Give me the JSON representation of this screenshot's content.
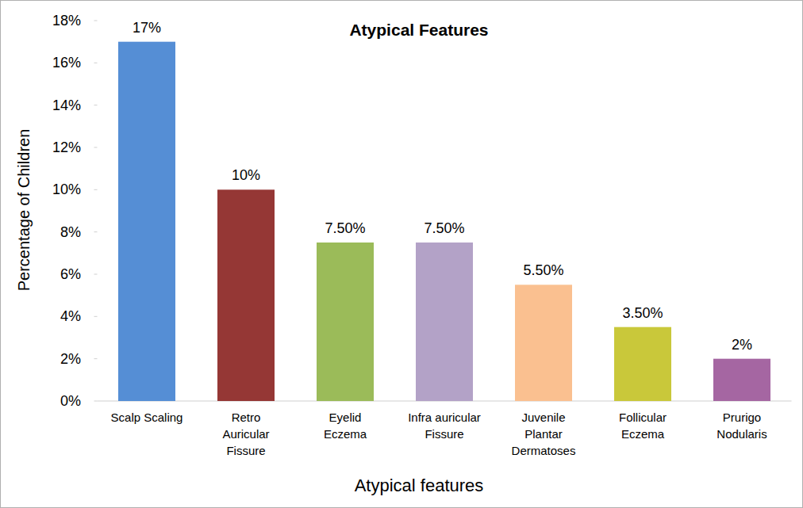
{
  "chart_data": {
    "type": "bar",
    "title": "Atypical Features",
    "x_label": "Atypical features",
    "y_label": "Percentage of Children",
    "categories": [
      "Scalp Scaling",
      "Retro\nAuricular\nFissure",
      "Eyelid\nEczema",
      "Infra auricular\nFissure",
      "Juvenile\nPlantar\nDermatoses",
      "Follicular\nEczema",
      "Prurigo\nNodularis"
    ],
    "values": [
      17,
      10,
      7.5,
      7.5,
      5.5,
      3.5,
      2
    ],
    "value_labels": [
      "17%",
      "10%",
      "7.50%",
      "7.50%",
      "5.50%",
      "3.50%",
      "2%"
    ],
    "colors": [
      "#558ed5",
      "#953735",
      "#9bbb59",
      "#b3a2c7",
      "#fac090",
      "#c9c83a",
      "#a566a2"
    ],
    "ylim": [
      0,
      18
    ],
    "yticks": [
      {
        "value": 0,
        "label": "0%"
      },
      {
        "value": 2,
        "label": "2%"
      },
      {
        "value": 4,
        "label": "4%"
      },
      {
        "value": 6,
        "label": "6%"
      },
      {
        "value": 8,
        "label": "8%"
      },
      {
        "value": 10,
        "label": "10%"
      },
      {
        "value": 12,
        "label": "12%"
      },
      {
        "value": 14,
        "label": "14%"
      },
      {
        "value": 16,
        "label": "16%"
      },
      {
        "value": 18,
        "label": "18%"
      }
    ],
    "grid": false,
    "data_labels": true
  }
}
